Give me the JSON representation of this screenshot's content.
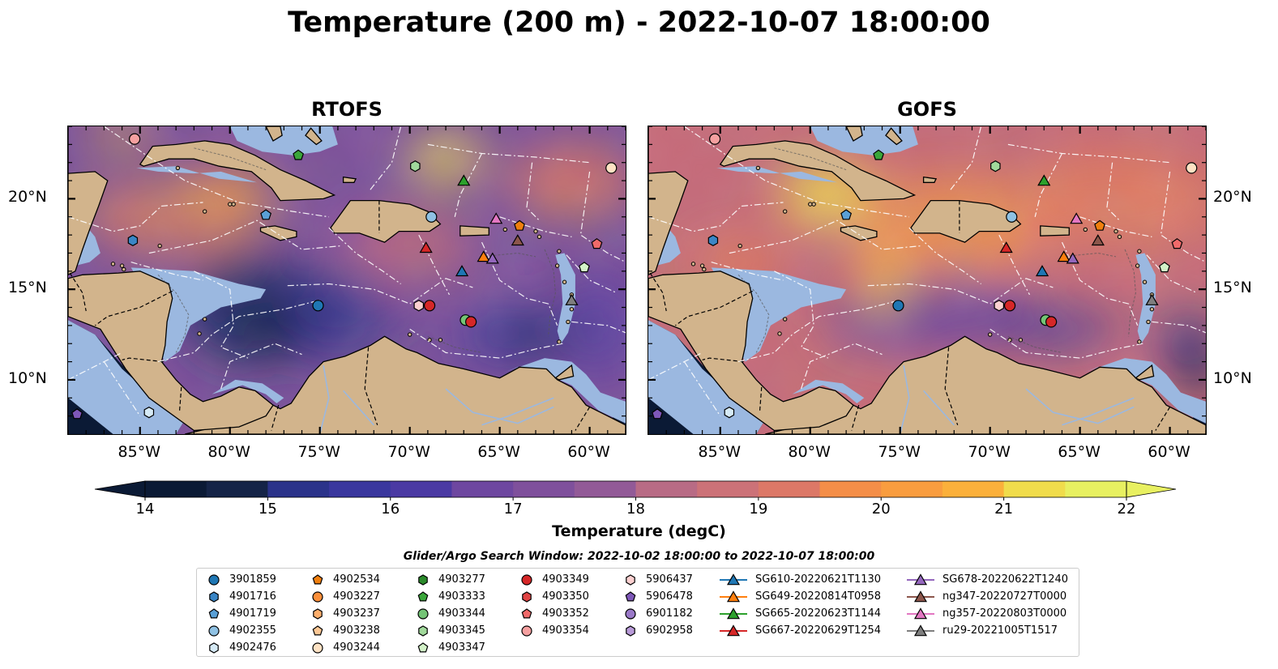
{
  "title": "Temperature (200 m) - 2022-10-07 18:00:00",
  "panels": [
    {
      "title": "RTOFS",
      "variant": "rtofs"
    },
    {
      "title": "GOFS",
      "variant": "gofs"
    }
  ],
  "map_extent": {
    "lon_min": -89,
    "lon_max": -58,
    "lat_min": 7,
    "lat_max": 24
  },
  "lon_ticks": [
    "85°W",
    "80°W",
    "75°W",
    "70°W",
    "65°W",
    "60°W"
  ],
  "lat_ticks": [
    "20°N",
    "15°N",
    "10°N"
  ],
  "colorbar": {
    "label": "Temperature (degC)",
    "min": 14,
    "max": 22,
    "step": 0.5,
    "ticks": [
      "14",
      "15",
      "16",
      "17",
      "18",
      "19",
      "20",
      "21",
      "22"
    ],
    "colors": [
      "#0b1a35",
      "#152447",
      "#1f2f69",
      "#2b338a",
      "#3a379e",
      "#4b3aa3",
      "#5d3fa3",
      "#6e47a0",
      "#7f509c",
      "#925a97",
      "#a46290",
      "#b86b85",
      "#cc7278",
      "#dc7867",
      "#e98257",
      "#f48e48",
      "#f99d3f",
      "#fbb03b",
      "#f8c540",
      "#f0dc4c",
      "#e8f061"
    ]
  },
  "legend": {
    "title": "Glider/Argo Search Window: 2022-10-02 18:00:00 to 2022-10-07 18:00:00",
    "entries": [
      {
        "label": "3901859",
        "marker": "circle",
        "color": "#1f77b4"
      },
      {
        "label": "4901716",
        "marker": "hexagon",
        "color": "#3a86c6"
      },
      {
        "label": "4901719",
        "marker": "pentagon",
        "color": "#5aa0d6"
      },
      {
        "label": "4902355",
        "marker": "circle",
        "color": "#8fc1e3"
      },
      {
        "label": "4902476",
        "marker": "hexagon",
        "color": "#d6eaf6"
      },
      {
        "label": "4902534",
        "marker": "pentagon",
        "color": "#f07f0e"
      },
      {
        "label": "4903227",
        "marker": "circle",
        "color": "#fb8f3a"
      },
      {
        "label": "4903237",
        "marker": "hexagon",
        "color": "#fdae6b"
      },
      {
        "label": "4903238",
        "marker": "pentagon",
        "color": "#fdc895"
      },
      {
        "label": "4903244",
        "marker": "circle",
        "color": "#fee2c4"
      },
      {
        "label": "4903277",
        "marker": "hexagon",
        "color": "#2a8a2a"
      },
      {
        "label": "4903333",
        "marker": "pentagon",
        "color": "#3aa63a"
      },
      {
        "label": "4903344",
        "marker": "circle",
        "color": "#74c476"
      },
      {
        "label": "4903345",
        "marker": "hexagon",
        "color": "#a1d99b"
      },
      {
        "label": "4903347",
        "marker": "pentagon",
        "color": "#d3f2c8"
      },
      {
        "label": "4903349",
        "marker": "circle",
        "color": "#d62728"
      },
      {
        "label": "4903350",
        "marker": "hexagon",
        "color": "#e04444"
      },
      {
        "label": "4903352",
        "marker": "pentagon",
        "color": "#f06a6a"
      },
      {
        "label": "4903354",
        "marker": "circle",
        "color": "#f5a0a0"
      },
      {
        "label": "5906437",
        "marker": "hexagon",
        "color": "#fbd0d0"
      },
      {
        "label": "5906478",
        "marker": "pentagon",
        "color": "#7e57b8"
      },
      {
        "label": "6901182",
        "marker": "circle",
        "color": "#9a79c8"
      },
      {
        "label": "6902958",
        "marker": "hexagon",
        "color": "#b89ad8"
      },
      {
        "label": "SG610-20220621T1130",
        "marker": "triangle",
        "color": "#1f77b4",
        "line": true
      },
      {
        "label": "SG649-20220814T0958",
        "marker": "triangle",
        "color": "#ff7f0e",
        "line": true
      },
      {
        "label": "SG665-20220623T1144",
        "marker": "triangle",
        "color": "#2ca02c",
        "line": true
      },
      {
        "label": "SG667-20220629T1254",
        "marker": "triangle",
        "color": "#d62728",
        "line": true
      },
      {
        "label": "SG678-20220622T1240",
        "marker": "triangle",
        "color": "#9467bd",
        "line": true
      },
      {
        "label": "ng347-20220727T0000",
        "marker": "triangle",
        "color": "#8c564b",
        "line": true
      },
      {
        "label": "ng357-20220803T0000",
        "marker": "triangle",
        "color": "#e377c2",
        "line": true
      },
      {
        "label": "ru29-20221005T1517",
        "marker": "triangle",
        "color": "#7f7f7f",
        "line": true
      }
    ]
  },
  "observations": [
    {
      "lon": -85.3,
      "lat": 23.3,
      "marker": "circle",
      "color": "#f5a0a0"
    },
    {
      "lon": -76.2,
      "lat": 22.4,
      "marker": "pentagon",
      "color": "#3aa63a"
    },
    {
      "lon": -69.7,
      "lat": 21.8,
      "marker": "hexagon",
      "color": "#a1d99b"
    },
    {
      "lon": -67.0,
      "lat": 21.0,
      "marker": "triangle",
      "color": "#2ca02c"
    },
    {
      "lon": -58.8,
      "lat": 21.7,
      "marker": "circle",
      "color": "#fee2c4"
    },
    {
      "lon": -78.0,
      "lat": 19.1,
      "marker": "pentagon",
      "color": "#5aa0d6"
    },
    {
      "lon": -68.8,
      "lat": 19.0,
      "marker": "circle",
      "color": "#8fc1e3"
    },
    {
      "lon": -65.2,
      "lat": 18.9,
      "marker": "triangle",
      "color": "#e377c2"
    },
    {
      "lon": -63.9,
      "lat": 18.5,
      "marker": "pentagon",
      "color": "#f07f0e"
    },
    {
      "lon": -85.4,
      "lat": 17.7,
      "marker": "hexagon",
      "color": "#3a86c6"
    },
    {
      "lon": -64.0,
      "lat": 17.7,
      "marker": "triangle",
      "color": "#8c564b"
    },
    {
      "lon": -59.6,
      "lat": 17.5,
      "marker": "pentagon",
      "color": "#f06a6a"
    },
    {
      "lon": -69.1,
      "lat": 17.3,
      "marker": "triangle",
      "color": "#d62728"
    },
    {
      "lon": -65.9,
      "lat": 16.8,
      "marker": "triangle",
      "color": "#ff7f0e"
    },
    {
      "lon": -65.4,
      "lat": 16.7,
      "marker": "triangle",
      "color": "#9467bd"
    },
    {
      "lon": -60.3,
      "lat": 16.2,
      "marker": "pentagon",
      "color": "#d3f2c8"
    },
    {
      "lon": -67.1,
      "lat": 16.0,
      "marker": "triangle",
      "color": "#1f77b4"
    },
    {
      "lon": -75.1,
      "lat": 14.1,
      "marker": "circle",
      "color": "#1f77b4"
    },
    {
      "lon": -69.5,
      "lat": 14.1,
      "marker": "hexagon",
      "color": "#fbd0d0"
    },
    {
      "lon": -68.9,
      "lat": 14.1,
      "marker": "circle",
      "color": "#d62728"
    },
    {
      "lon": -61.0,
      "lat": 14.4,
      "marker": "triangle",
      "color": "#7f7f7f"
    },
    {
      "lon": -66.9,
      "lat": 13.3,
      "marker": "circle",
      "color": "#74c476"
    },
    {
      "lon": -66.6,
      "lat": 13.2,
      "marker": "circle",
      "color": "#d62728"
    },
    {
      "lon": -88.5,
      "lat": 8.1,
      "marker": "pentagon",
      "color": "#7e57b8"
    },
    {
      "lon": -84.5,
      "lat": 8.2,
      "marker": "hexagon",
      "color": "#d6eaf6"
    }
  ]
}
